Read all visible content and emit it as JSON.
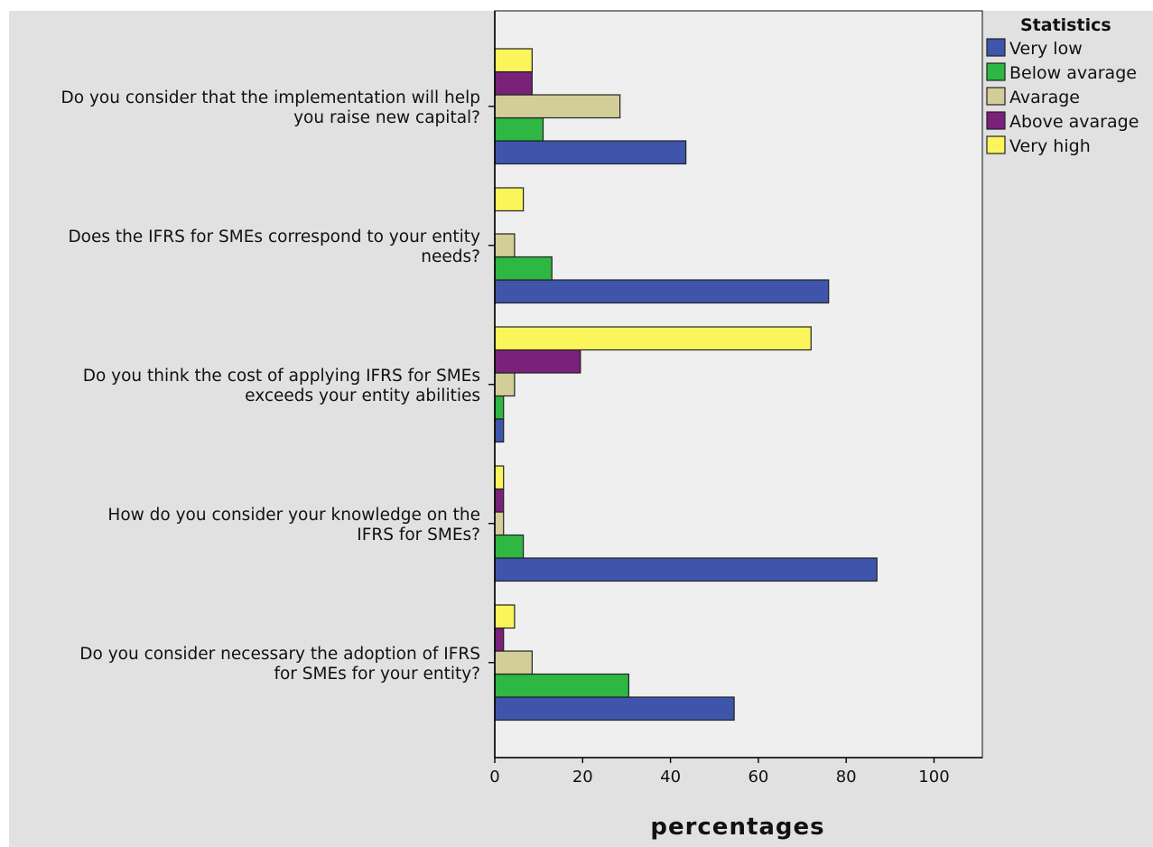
{
  "chart_data": {
    "type": "bar",
    "orientation": "horizontal",
    "categories": [
      "Do you consider that the implementation will help you raise new capital?",
      "Does the IFRS for SMEs correspond to your entity needs?",
      "Do you think the cost of applying IFRS for SMEs exceeds your entity abilities",
      "How do you consider your knowledge on the IFRS for SMEs?",
      "Do you consider necessary the adoption of IFRS for SMEs for your entity?"
    ],
    "category_lines": [
      [
        "Do you consider that the implementation will help",
        "you raise new capital?"
      ],
      [
        "Does the IFRS for SMEs correspond to your entity",
        "needs?"
      ],
      [
        "Do you think the cost of applying IFRS for SMEs",
        "exceeds your entity abilities"
      ],
      [
        "How do you consider your knowledge on the",
        "IFRS for SMEs?"
      ],
      [
        "Do you consider necessary the adoption of IFRS",
        "for SMEs for your entity?"
      ]
    ],
    "series": [
      {
        "name": "Very low",
        "color": "#3f55ab",
        "values": [
          43.5,
          76,
          2,
          87,
          54.5
        ]
      },
      {
        "name": "Below avarage",
        "color": "#2eb743",
        "values": [
          11,
          13,
          2,
          6.5,
          30.5
        ]
      },
      {
        "name": "Avarage",
        "color": "#d3cd98",
        "values": [
          28.5,
          4.5,
          4.5,
          2,
          8.5
        ]
      },
      {
        "name": "Above avarage",
        "color": "#7a217a",
        "values": [
          8.5,
          0,
          19.5,
          2,
          2
        ]
      },
      {
        "name": "Very high",
        "color": "#fbf55c",
        "values": [
          8.5,
          6.5,
          72,
          2,
          4.5
        ]
      }
    ],
    "xlabel": "percentages",
    "ylabel": "",
    "xlim": [
      0,
      111
    ],
    "xticks": [
      0,
      20,
      40,
      60,
      80,
      100
    ],
    "legend_title": "Statistics",
    "legend_position": "top-right",
    "grid": false,
    "plot_background": "#efefef",
    "frame_background": "#e1e1e1"
  }
}
